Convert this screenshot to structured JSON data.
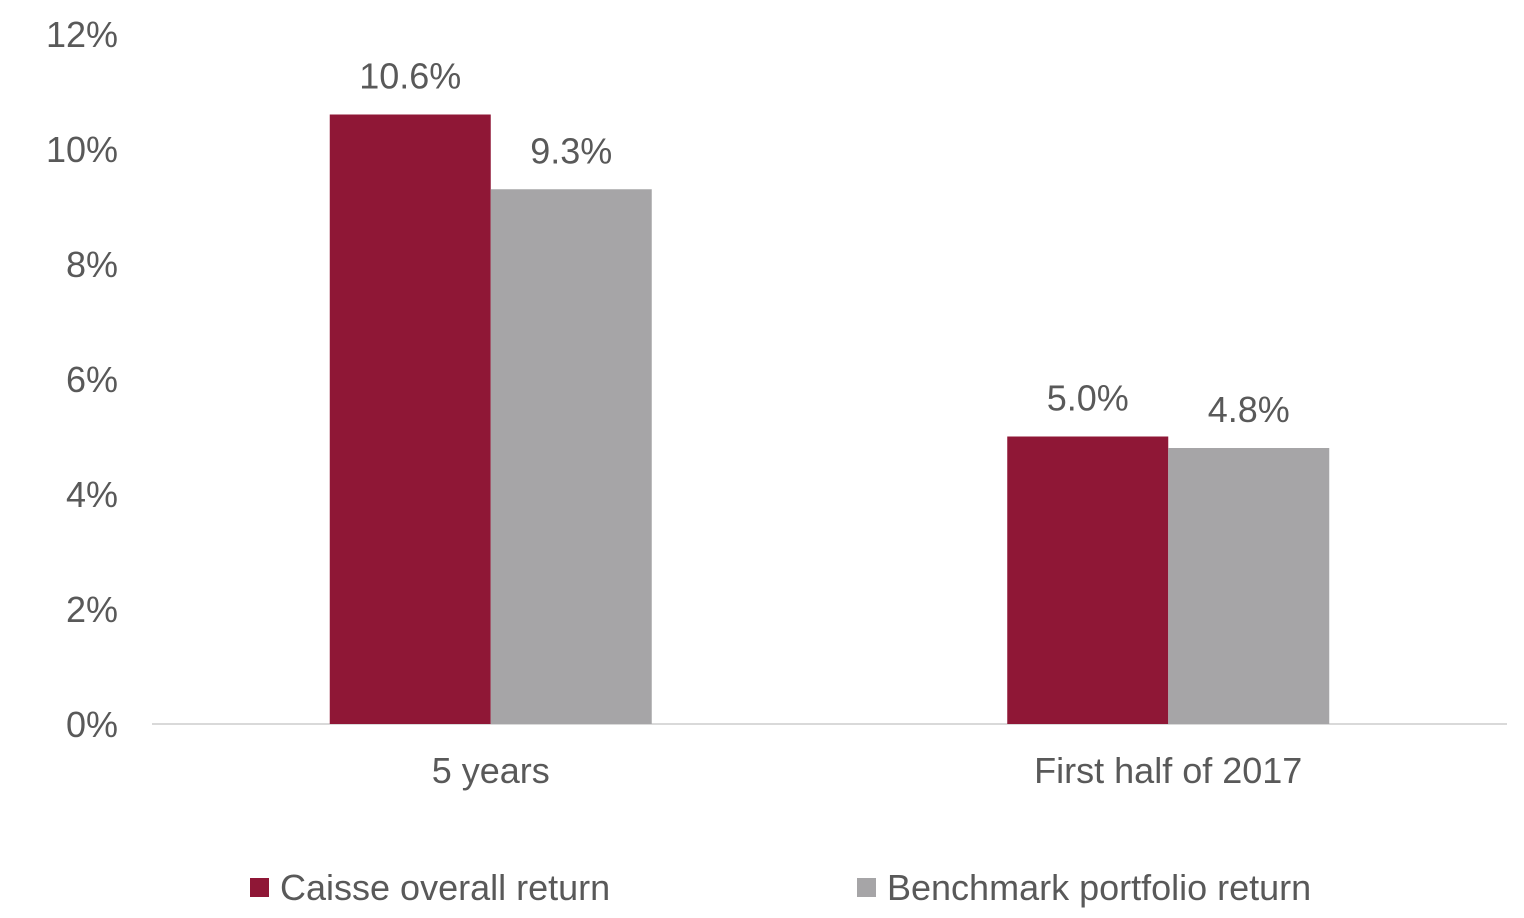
{
  "chart_data": {
    "type": "bar",
    "title": "",
    "xlabel": "",
    "ylabel": "",
    "categories": [
      "5 years",
      "First half of 2017"
    ],
    "series": [
      {
        "name": "Caisse overall return",
        "values": [
          10.6,
          5.0
        ],
        "labels": [
          "10.6%",
          "5.0%"
        ],
        "color": "#8f1736"
      },
      {
        "name": "Benchmark portfolio return",
        "values": [
          9.3,
          4.8
        ],
        "labels": [
          "9.3%",
          "4.8%"
        ],
        "color": "#a6a5a7"
      }
    ],
    "ylim": [
      0,
      12
    ],
    "yticks": [
      0,
      2,
      4,
      6,
      8,
      10,
      12
    ],
    "ytick_labels": [
      "0%",
      "2%",
      "4%",
      "6%",
      "8%",
      "10%",
      "12%"
    ],
    "grid": false,
    "legend_position": "bottom"
  }
}
